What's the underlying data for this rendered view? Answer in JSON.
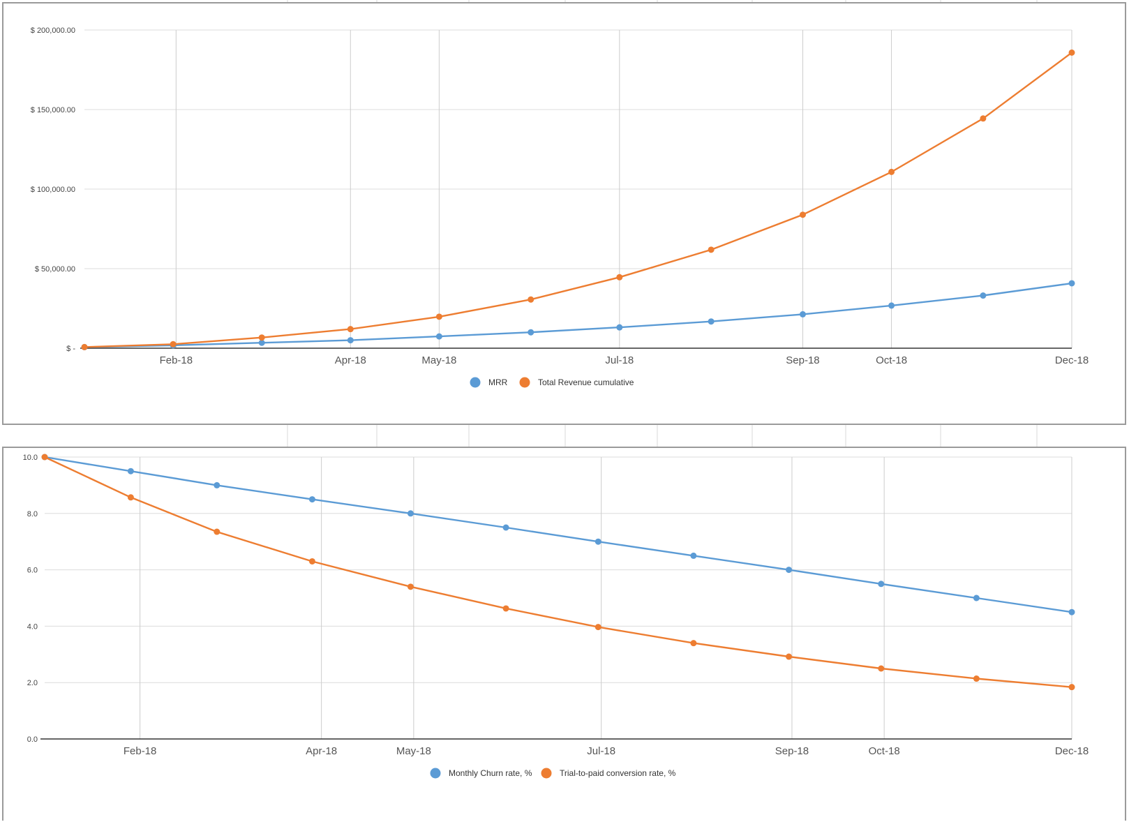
{
  "chart_data": [
    {
      "type": "line",
      "title": "",
      "xlabel": "",
      "ylabel": "",
      "ylim": [
        0,
        200000
      ],
      "y_ticks": [
        0,
        50000,
        100000,
        150000,
        200000
      ],
      "y_tick_labels": [
        "$ -",
        "$ 50,000.00",
        "$ 100,000.00",
        "$ 150,000.00",
        "$ 200,000.00"
      ],
      "x_range": [
        "2018-01-01",
        "2018-12-01"
      ],
      "x_ticks": [
        "2018-02-01",
        "2018-04-01",
        "2018-05-01",
        "2018-07-01",
        "2018-09-01",
        "2018-10-01",
        "2018-12-01"
      ],
      "x_tick_labels": [
        "Feb-18",
        "Apr-18",
        "May-18",
        "Jul-18",
        "Sep-18",
        "Oct-18",
        "Dec-18"
      ],
      "x": [
        "2018-01-01",
        "2018-01-31",
        "2018-03-02",
        "2018-04-01",
        "2018-05-01",
        "2018-06-01",
        "2018-07-01",
        "2018-08-01",
        "2018-09-01",
        "2018-10-01",
        "2018-11-01",
        "2018-12-01"
      ],
      "series": [
        {
          "name": "MRR",
          "color": "#5b9bd5",
          "values": [
            700,
            1800,
            3400,
            5000,
            7400,
            10000,
            13100,
            16800,
            21300,
            26800,
            33100,
            40800
          ]
        },
        {
          "name": "Total Revenue cumulative",
          "color": "#ed7d31",
          "values": [
            700,
            2500,
            6700,
            12000,
            19800,
            30600,
            44600,
            61900,
            83900,
            110800,
            144400,
            185800
          ]
        }
      ],
      "grid": true,
      "legend": "bottom"
    },
    {
      "type": "line",
      "title": "",
      "xlabel": "",
      "ylabel": "",
      "ylim": [
        0,
        10
      ],
      "y_ticks": [
        0,
        2,
        4,
        6,
        8,
        10
      ],
      "y_tick_labels": [
        "0.0",
        "2.0",
        "4.0",
        "6.0",
        "8.0",
        "10.0"
      ],
      "x_range": [
        "2018-01-01",
        "2018-12-01"
      ],
      "x_ticks": [
        "2018-02-01",
        "2018-04-01",
        "2018-05-01",
        "2018-07-01",
        "2018-09-01",
        "2018-10-01",
        "2018-12-01"
      ],
      "x_tick_labels": [
        "Feb-18",
        "Apr-18",
        "May-18",
        "Jul-18",
        "Sep-18",
        "Oct-18",
        "Dec-18"
      ],
      "x": [
        "2018-01-01",
        "2018-01-29",
        "2018-02-26",
        "2018-03-29",
        "2018-04-30",
        "2018-05-31",
        "2018-06-30",
        "2018-07-31",
        "2018-08-31",
        "2018-09-30",
        "2018-10-31",
        "2018-12-01"
      ],
      "series": [
        {
          "name": "Monthly Churn rate, %",
          "color": "#5b9bd5",
          "values": [
            10.0,
            9.5,
            9.0,
            8.5,
            8.0,
            7.5,
            7.0,
            6.5,
            6.0,
            5.5,
            5.0,
            4.5
          ]
        },
        {
          "name": "Trial-to-paid conversion rate, %",
          "color": "#ed7d31",
          "values": [
            10.0,
            8.57,
            7.35,
            6.3,
            5.4,
            4.63,
            3.97,
            3.4,
            2.92,
            2.5,
            2.14,
            1.84
          ]
        }
      ],
      "grid": true,
      "legend": "bottom"
    }
  ]
}
